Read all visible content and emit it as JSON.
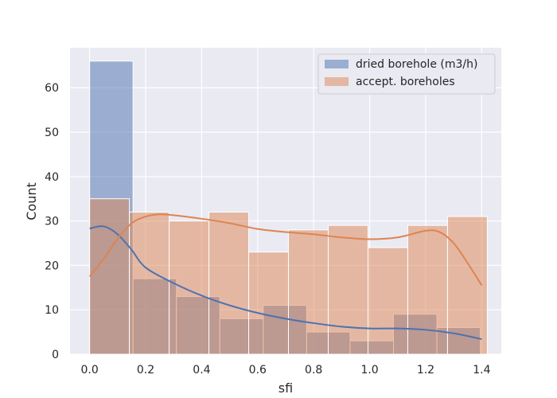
{
  "chart_data": {
    "type": "bar",
    "xlabel": "sfi",
    "ylabel": "Count",
    "xlim": [
      -0.07,
      1.47
    ],
    "ylim": [
      0,
      69
    ],
    "xticks": [
      0.0,
      0.2,
      0.4,
      0.6,
      0.8,
      1.0,
      1.2,
      1.4
    ],
    "xtick_labels": [
      "0.0",
      "0.2",
      "0.4",
      "0.6",
      "0.8",
      "1.0",
      "1.2",
      "1.4"
    ],
    "yticks": [
      0,
      10,
      20,
      30,
      40,
      50,
      60
    ],
    "ytick_labels": [
      "0",
      "10",
      "20",
      "30",
      "40",
      "50",
      "60"
    ],
    "grid": true,
    "legend_position": "top-right",
    "series": [
      {
        "name": "dried borehole (m3/h)",
        "color": "#4c72b0",
        "bins": [
          {
            "x0": 0.0,
            "x1": 0.155,
            "count": 66
          },
          {
            "x0": 0.155,
            "x1": 0.31,
            "count": 17
          },
          {
            "x0": 0.31,
            "x1": 0.465,
            "count": 13
          },
          {
            "x0": 0.465,
            "x1": 0.62,
            "count": 8
          },
          {
            "x0": 0.62,
            "x1": 0.775,
            "count": 11
          },
          {
            "x0": 0.775,
            "x1": 0.93,
            "count": 5
          },
          {
            "x0": 0.93,
            "x1": 1.085,
            "count": 3
          },
          {
            "x0": 1.085,
            "x1": 1.24,
            "count": 9
          },
          {
            "x0": 1.24,
            "x1": 1.395,
            "count": 6
          }
        ],
        "kde": {
          "x": [
            0.0,
            0.05,
            0.1,
            0.15,
            0.2,
            0.3,
            0.4,
            0.5,
            0.6,
            0.7,
            0.8,
            0.9,
            1.0,
            1.1,
            1.2,
            1.3,
            1.4
          ],
          "y": [
            28.3,
            28.8,
            27.0,
            23.5,
            19.5,
            16.0,
            13.2,
            11.0,
            9.3,
            8.0,
            7.0,
            6.2,
            5.8,
            5.8,
            5.5,
            4.7,
            3.4
          ]
        }
      },
      {
        "name": "accept. boreholes",
        "color": "#dd8452",
        "bins": [
          {
            "x0": 0.0,
            "x1": 0.142,
            "count": 35
          },
          {
            "x0": 0.142,
            "x1": 0.284,
            "count": 32
          },
          {
            "x0": 0.284,
            "x1": 0.426,
            "count": 30
          },
          {
            "x0": 0.426,
            "x1": 0.568,
            "count": 32
          },
          {
            "x0": 0.568,
            "x1": 0.71,
            "count": 23
          },
          {
            "x0": 0.71,
            "x1": 0.852,
            "count": 28
          },
          {
            "x0": 0.852,
            "x1": 0.994,
            "count": 29
          },
          {
            "x0": 0.994,
            "x1": 1.136,
            "count": 24
          },
          {
            "x0": 1.136,
            "x1": 1.278,
            "count": 29
          },
          {
            "x0": 1.278,
            "x1": 1.42,
            "count": 31
          }
        ],
        "kde": {
          "x": [
            0.0,
            0.05,
            0.1,
            0.15,
            0.2,
            0.25,
            0.3,
            0.4,
            0.5,
            0.6,
            0.7,
            0.8,
            0.9,
            1.0,
            1.1,
            1.2,
            1.25,
            1.3,
            1.35,
            1.4
          ],
          "y": [
            17.5,
            21.5,
            26.0,
            29.5,
            31.0,
            31.5,
            31.3,
            30.5,
            29.5,
            28.2,
            27.5,
            27.0,
            26.3,
            25.9,
            26.3,
            27.8,
            27.5,
            25.0,
            20.5,
            15.5
          ]
        }
      }
    ]
  }
}
